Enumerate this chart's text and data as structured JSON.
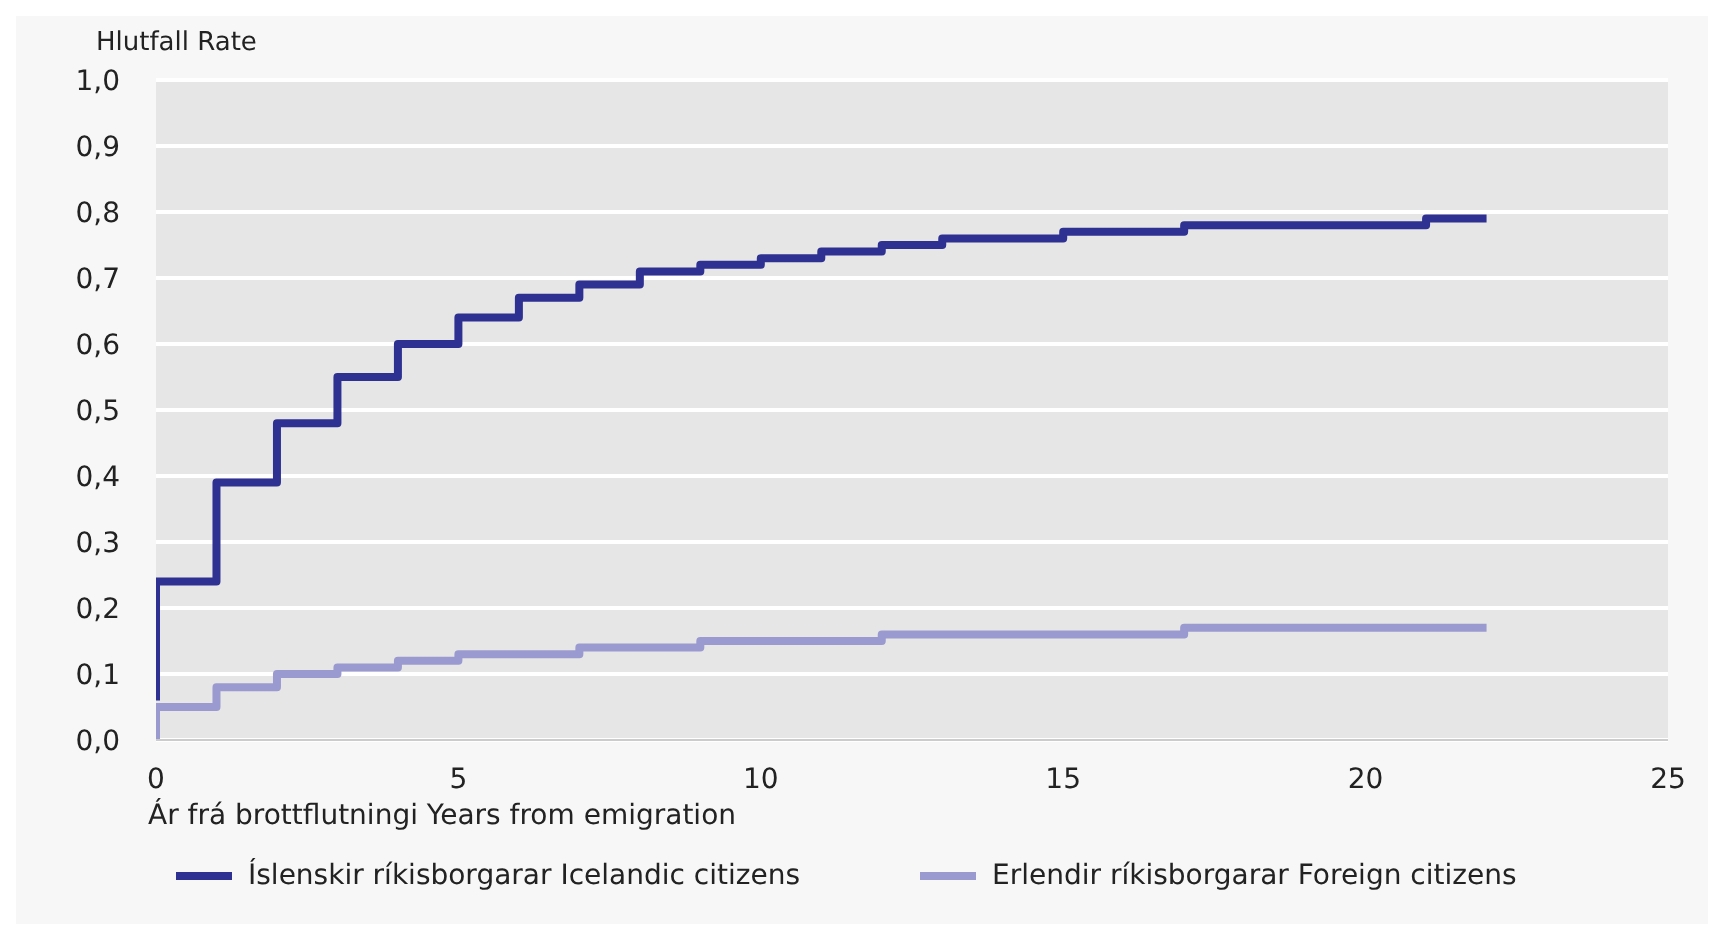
{
  "chart_data": {
    "type": "step",
    "ylabel": "Hlutfall Rate",
    "xlabel": "Ár frá brottflutningi Years from emigration",
    "xlim": [
      0,
      25
    ],
    "xticks": [
      0,
      5,
      10,
      15,
      20,
      25
    ],
    "ylim": [
      0,
      1
    ],
    "yticks": [
      {
        "value": 0,
        "label": "0,0"
      },
      {
        "value": 0.1,
        "label": "0,1"
      },
      {
        "value": 0.2,
        "label": "0,2"
      },
      {
        "value": 0.3,
        "label": "0,3"
      },
      {
        "value": 0.4,
        "label": "0,4"
      },
      {
        "value": 0.5,
        "label": "0,5"
      },
      {
        "value": 0.6,
        "label": "0,6"
      },
      {
        "value": 0.7,
        "label": "0,7"
      },
      {
        "value": 0.8,
        "label": "0,8"
      },
      {
        "value": 0.9,
        "label": "0,9"
      },
      {
        "value": 1,
        "label": "1,0"
      }
    ],
    "grid": "y",
    "legend": "bottom",
    "marker": "none",
    "line_style": "solid",
    "series": [
      {
        "name": "Íslenskir ríkisborgarar Icelandic citizens",
        "color": "#2e3192",
        "x": [
          0,
          0,
          1,
          2,
          3,
          4,
          5,
          6,
          7,
          8,
          9,
          10,
          11,
          12,
          13,
          14,
          15,
          16,
          17,
          18,
          19,
          20,
          21,
          22
        ],
        "values": [
          0.06,
          0.24,
          0.39,
          0.48,
          0.55,
          0.6,
          0.64,
          0.67,
          0.69,
          0.71,
          0.72,
          0.73,
          0.74,
          0.75,
          0.76,
          0.76,
          0.77,
          0.77,
          0.78,
          0.78,
          0.78,
          0.78,
          0.79,
          0.79
        ]
      },
      {
        "name": "Erlendir ríkisborgarar Foreign citizens",
        "color": "#9a9ad0",
        "x": [
          0,
          0,
          1,
          2,
          3,
          4,
          5,
          6,
          7,
          8,
          9,
          10,
          11,
          12,
          13,
          14,
          15,
          16,
          17,
          18,
          19,
          20,
          21,
          22
        ],
        "values": [
          0,
          0.05,
          0.08,
          0.1,
          0.11,
          0.12,
          0.13,
          0.13,
          0.14,
          0.14,
          0.15,
          0.15,
          0.15,
          0.16,
          0.16,
          0.16,
          0.16,
          0.16,
          0.17,
          0.17,
          0.17,
          0.17,
          0.17,
          0.17
        ]
      }
    ]
  }
}
